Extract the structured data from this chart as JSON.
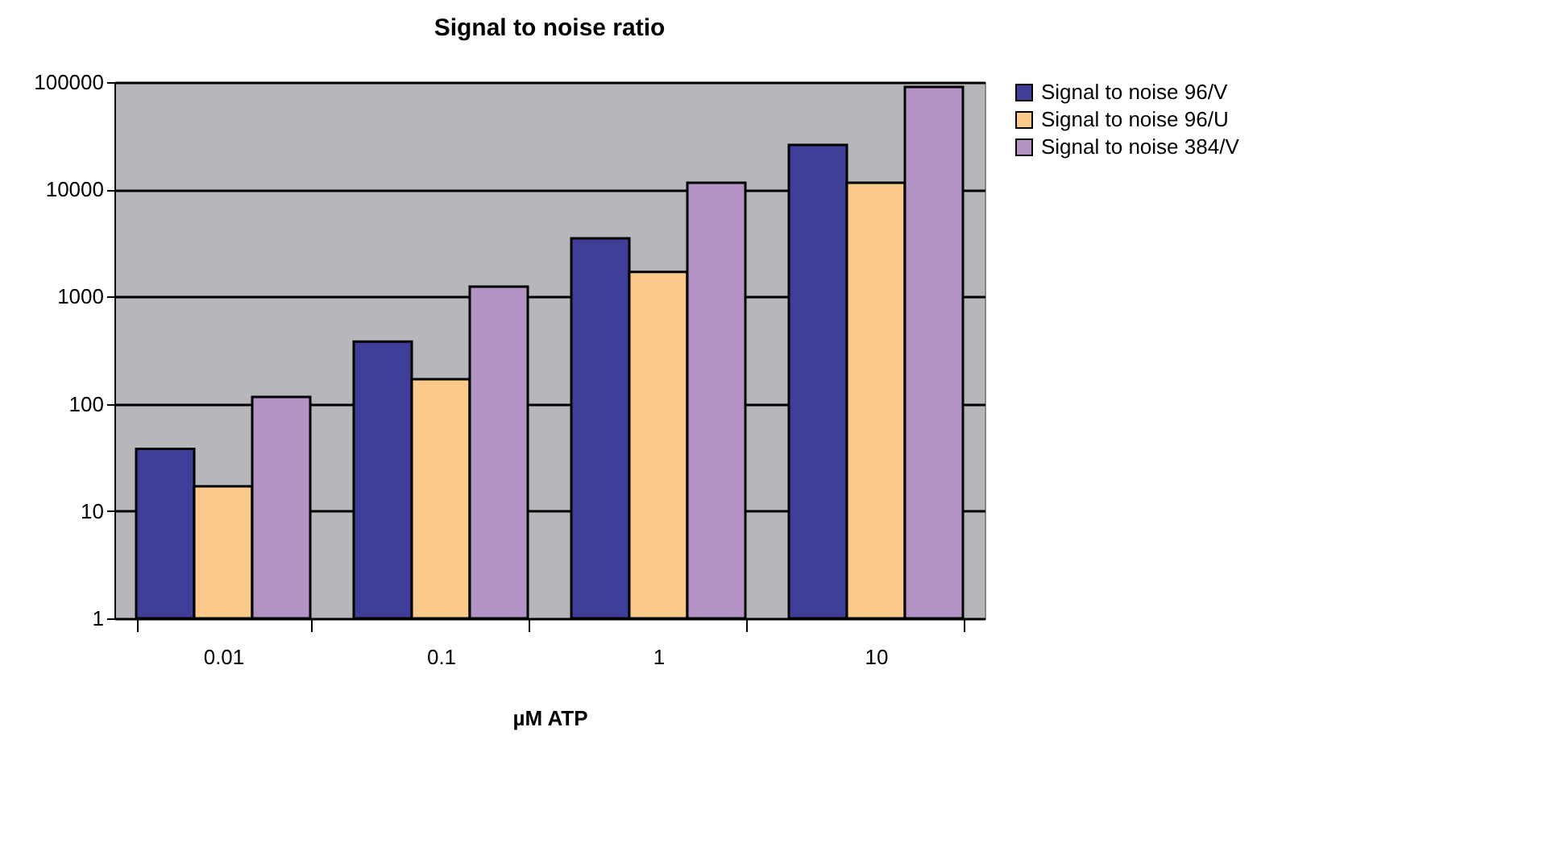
{
  "chart_data": {
    "type": "bar",
    "title": "Signal to noise ratio",
    "xlabel": "µM ATP",
    "categories": [
      "0.01",
      "0.1",
      "1",
      "10"
    ],
    "series": [
      {
        "name": "Signal to noise 96/V",
        "color": "#3f3f9a",
        "values": [
          38,
          380,
          3500,
          26000
        ]
      },
      {
        "name": "Signal to noise 96/U",
        "color": "#fbca8b",
        "values": [
          17,
          170,
          1700,
          11500
        ]
      },
      {
        "name": "Signal to noise 384/V",
        "color": "#b393c6",
        "values": [
          116,
          1240,
          11500,
          90000
        ]
      }
    ],
    "log": "y",
    "ylim": [
      1,
      100000
    ],
    "yticks": [
      1,
      10,
      100,
      1000,
      10000,
      100000
    ],
    "grid": "y",
    "legend": "right"
  }
}
